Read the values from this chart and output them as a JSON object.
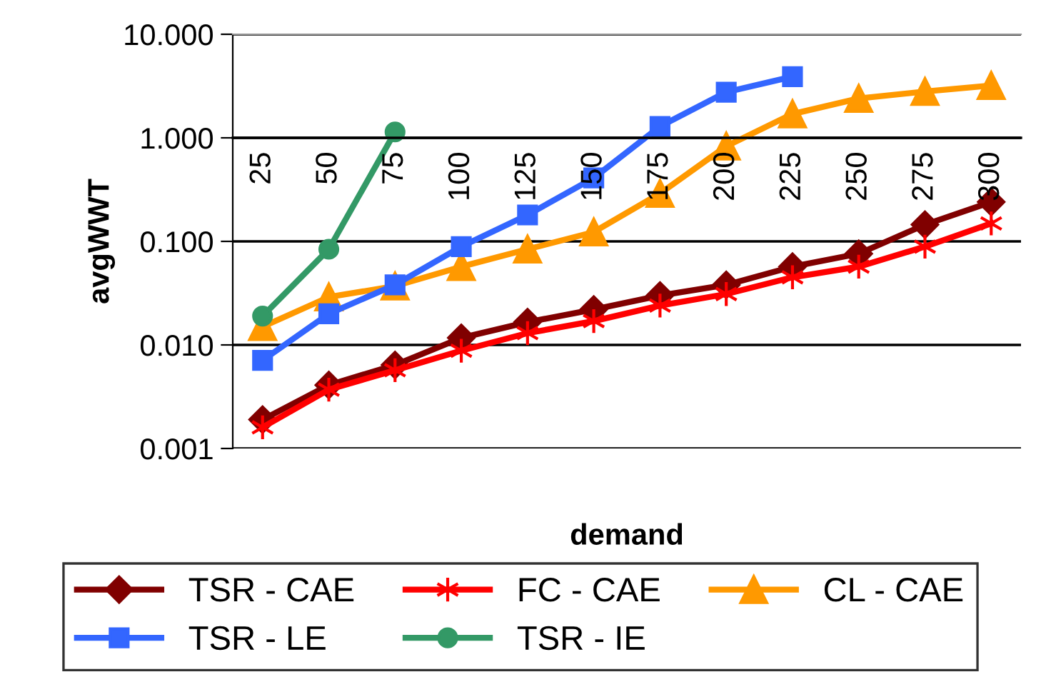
{
  "chart_data": {
    "type": "line",
    "xlabel": "demand",
    "ylabel": "avgWWT",
    "log": "y",
    "categories": [
      "25",
      "50",
      "75",
      "100",
      "125",
      "150",
      "175",
      "200",
      "225",
      "250",
      "275",
      "300"
    ],
    "ylim": [
      0.001,
      10
    ],
    "yticks": [
      {
        "value": 0.001,
        "label": "0.001"
      },
      {
        "value": 0.01,
        "label": "0.010"
      },
      {
        "value": 0.1,
        "label": "0.100"
      },
      {
        "value": 1,
        "label": "1.000"
      },
      {
        "value": 10,
        "label": "10.000"
      }
    ],
    "grid": "y",
    "legend": "bottom",
    "series": [
      {
        "name": "TSR - CAE",
        "color": "#800000",
        "marker": "diamond",
        "values": [
          0.0019,
          0.0041,
          0.0064,
          0.0117,
          0.0166,
          0.022,
          0.03,
          0.038,
          0.057,
          0.076,
          0.145,
          0.24
        ]
      },
      {
        "name": "FC - CAE",
        "color": "#ff0000",
        "marker": "cross",
        "values": [
          0.0016,
          0.0037,
          0.0057,
          0.0088,
          0.013,
          0.017,
          0.024,
          0.031,
          0.045,
          0.057,
          0.089,
          0.149
        ]
      },
      {
        "name": "CL - CAE",
        "color": "#ff9900",
        "marker": "triangle",
        "values": [
          0.015,
          0.029,
          0.037,
          0.057,
          0.084,
          0.123,
          0.29,
          0.83,
          1.7,
          2.4,
          2.8,
          3.2
        ]
      },
      {
        "name": "TSR - LE",
        "color": "#3366ff",
        "marker": "square",
        "values": [
          0.0071,
          0.02,
          0.038,
          0.089,
          0.18,
          0.41,
          1.29,
          2.76,
          3.9,
          null,
          null,
          null
        ]
      },
      {
        "name": "TSR - IE",
        "color": "#339966",
        "marker": "circle",
        "values": [
          0.019,
          0.084,
          1.14,
          null,
          null,
          null,
          null,
          null,
          null,
          null,
          null,
          null
        ]
      }
    ]
  }
}
